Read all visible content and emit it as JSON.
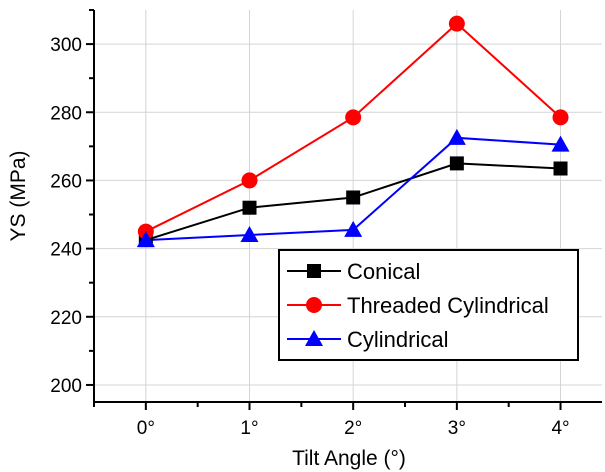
{
  "chart_data": {
    "type": "line",
    "title": "",
    "xlabel": "Tilt  Angle (°)",
    "ylabel": "YS (MPa)",
    "x": [
      0,
      1,
      2,
      3,
      4
    ],
    "x_tick_labels": [
      "0°",
      "1°",
      "2°",
      "3°",
      "4°"
    ],
    "xlim": [
      -0.5,
      4.4
    ],
    "ylim": [
      195,
      310
    ],
    "y_ticks": [
      200,
      220,
      240,
      260,
      280,
      300
    ],
    "y_tick_labels": [
      "200",
      "220",
      "240",
      "260",
      "280",
      "300"
    ],
    "grid": true,
    "legend_position": "bottom-right",
    "series": [
      {
        "name": "Conical",
        "color": "#000000",
        "marker": "square",
        "values": [
          242.5,
          252,
          255,
          265,
          263.5
        ]
      },
      {
        "name": "Threaded Cylindrical",
        "color": "#ff0000",
        "marker": "circle",
        "values": [
          245,
          260,
          278.5,
          306,
          278.5
        ]
      },
      {
        "name": "Cylindrical",
        "color": "#0000ff",
        "marker": "triangle",
        "values": [
          242.5,
          244,
          245.5,
          272.5,
          270.5
        ]
      }
    ]
  }
}
